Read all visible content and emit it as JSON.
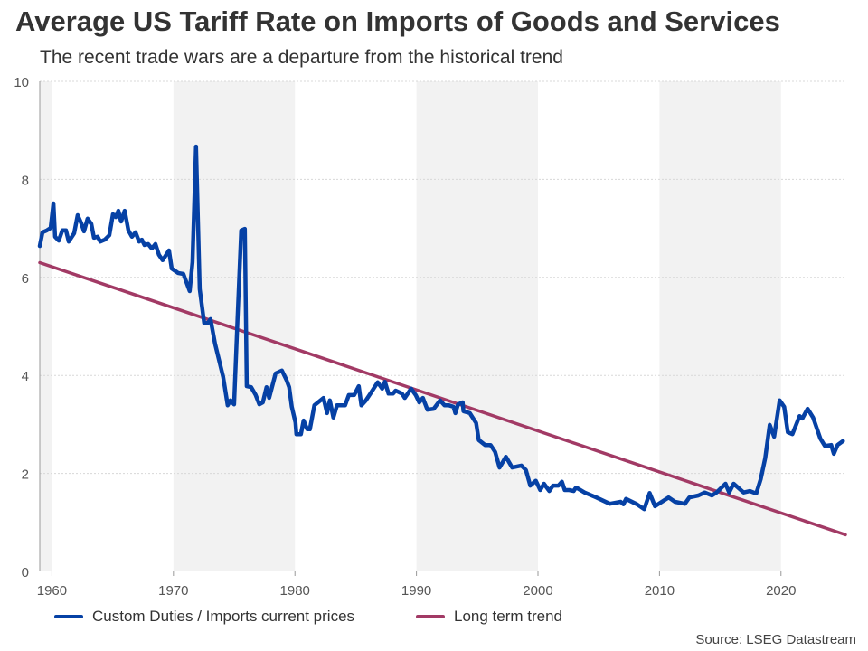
{
  "title": "Average US Tariff Rate on Imports of Goods and Services",
  "subtitle": "The recent trade wars are a departure from the historical trend",
  "source": "Source: LSEG Datastream",
  "chart_data": {
    "type": "line",
    "title": "Average US Tariff Rate on Imports of Goods and Services",
    "subtitle": "The recent trade wars are a departure from the historical trend",
    "xlim": [
      1959,
      2025.3
    ],
    "ylim": [
      0,
      10
    ],
    "x_ticks": [
      1960,
      1970,
      1980,
      1990,
      2000,
      2010,
      2020
    ],
    "y_ticks": [
      0,
      2,
      4,
      6,
      8,
      10
    ],
    "grid": "horizontal dotted",
    "shaded_periods": [
      [
        1959,
        1960
      ],
      [
        1970,
        1980
      ],
      [
        1990,
        2000
      ],
      [
        2010,
        2020
      ]
    ],
    "legend_position": "bottom-left",
    "series": [
      {
        "name": "Custom Duties / Imports current prices",
        "color": "#0641a5",
        "points": [
          [
            1959.0,
            6.64
          ],
          [
            1959.22,
            6.92
          ],
          [
            1959.59,
            6.96
          ],
          [
            1959.89,
            7.01
          ],
          [
            1960.12,
            7.51
          ],
          [
            1960.26,
            6.83
          ],
          [
            1960.56,
            6.75
          ],
          [
            1960.86,
            6.96
          ],
          [
            1961.16,
            6.96
          ],
          [
            1961.38,
            6.73
          ],
          [
            1961.83,
            6.9
          ],
          [
            1962.12,
            7.27
          ],
          [
            1962.42,
            7.1
          ],
          [
            1962.64,
            6.94
          ],
          [
            1962.94,
            7.2
          ],
          [
            1963.24,
            7.09
          ],
          [
            1963.46,
            6.81
          ],
          [
            1963.76,
            6.83
          ],
          [
            1963.98,
            6.73
          ],
          [
            1964.35,
            6.77
          ],
          [
            1964.72,
            6.86
          ],
          [
            1965.02,
            7.29
          ],
          [
            1965.25,
            7.23
          ],
          [
            1965.47,
            7.36
          ],
          [
            1965.69,
            7.14
          ],
          [
            1965.99,
            7.36
          ],
          [
            1966.29,
            6.96
          ],
          [
            1966.58,
            6.83
          ],
          [
            1966.88,
            6.92
          ],
          [
            1967.18,
            6.73
          ],
          [
            1967.4,
            6.77
          ],
          [
            1967.62,
            6.66
          ],
          [
            1967.92,
            6.68
          ],
          [
            1968.22,
            6.59
          ],
          [
            1968.52,
            6.68
          ],
          [
            1968.81,
            6.46
          ],
          [
            1969.11,
            6.35
          ],
          [
            1969.63,
            6.55
          ],
          [
            1969.86,
            6.18
          ],
          [
            1970.38,
            6.09
          ],
          [
            1970.82,
            6.07
          ],
          [
            1971.34,
            5.72
          ],
          [
            1971.57,
            6.31
          ],
          [
            1971.86,
            8.67
          ],
          [
            1972.16,
            5.76
          ],
          [
            1972.53,
            5.07
          ],
          [
            1972.83,
            5.07
          ],
          [
            1973.05,
            5.15
          ],
          [
            1973.42,
            4.65
          ],
          [
            1974.09,
            3.97
          ],
          [
            1974.46,
            3.39
          ],
          [
            1974.69,
            3.49
          ],
          [
            1974.99,
            3.41
          ],
          [
            1975.28,
            5.2
          ],
          [
            1975.58,
            6.96
          ],
          [
            1975.88,
            6.99
          ],
          [
            1976.03,
            3.78
          ],
          [
            1976.4,
            3.76
          ],
          [
            1976.77,
            3.6
          ],
          [
            1977.07,
            3.41
          ],
          [
            1977.36,
            3.45
          ],
          [
            1977.66,
            3.76
          ],
          [
            1977.88,
            3.54
          ],
          [
            1978.41,
            4.04
          ],
          [
            1978.93,
            4.1
          ],
          [
            1979.3,
            3.91
          ],
          [
            1979.52,
            3.76
          ],
          [
            1979.74,
            3.36
          ],
          [
            1980.04,
            3.04
          ],
          [
            1980.12,
            2.8
          ],
          [
            1980.49,
            2.8
          ],
          [
            1980.71,
            3.08
          ],
          [
            1981.01,
            2.9
          ],
          [
            1981.23,
            2.9
          ],
          [
            1981.6,
            3.39
          ],
          [
            1982.35,
            3.54
          ],
          [
            1982.64,
            3.23
          ],
          [
            1982.87,
            3.49
          ],
          [
            1983.16,
            3.14
          ],
          [
            1983.46,
            3.39
          ],
          [
            1984.13,
            3.39
          ],
          [
            1984.43,
            3.6
          ],
          [
            1984.87,
            3.6
          ],
          [
            1985.25,
            3.78
          ],
          [
            1985.47,
            3.39
          ],
          [
            1985.84,
            3.49
          ],
          [
            1986.21,
            3.63
          ],
          [
            1986.81,
            3.86
          ],
          [
            1987.18,
            3.73
          ],
          [
            1987.4,
            3.87
          ],
          [
            1987.7,
            3.63
          ],
          [
            1988.07,
            3.63
          ],
          [
            1988.29,
            3.69
          ],
          [
            1988.81,
            3.63
          ],
          [
            1989.04,
            3.54
          ],
          [
            1989.56,
            3.73
          ],
          [
            1989.94,
            3.6
          ],
          [
            1990.23,
            3.45
          ],
          [
            1990.53,
            3.54
          ],
          [
            1990.9,
            3.3
          ],
          [
            1991.42,
            3.32
          ],
          [
            1991.94,
            3.49
          ],
          [
            1992.31,
            3.39
          ],
          [
            1992.68,
            3.39
          ],
          [
            1993.05,
            3.36
          ],
          [
            1993.2,
            3.23
          ],
          [
            1993.42,
            3.41
          ],
          [
            1993.8,
            3.45
          ],
          [
            1993.87,
            3.27
          ],
          [
            1994.39,
            3.23
          ],
          [
            1994.91,
            3.03
          ],
          [
            1995.13,
            2.68
          ],
          [
            1995.65,
            2.58
          ],
          [
            1996.1,
            2.58
          ],
          [
            1996.47,
            2.44
          ],
          [
            1996.84,
            2.12
          ],
          [
            1997.36,
            2.34
          ],
          [
            1997.88,
            2.12
          ],
          [
            1998.63,
            2.16
          ],
          [
            1999.0,
            2.07
          ],
          [
            1999.37,
            1.75
          ],
          [
            1999.82,
            1.85
          ],
          [
            2000.19,
            1.66
          ],
          [
            2000.49,
            1.79
          ],
          [
            2000.93,
            1.64
          ],
          [
            2001.23,
            1.75
          ],
          [
            2001.68,
            1.75
          ],
          [
            2001.97,
            1.83
          ],
          [
            2002.2,
            1.66
          ],
          [
            2002.35,
            1.66
          ],
          [
            2002.57,
            1.66
          ],
          [
            2002.94,
            1.64
          ],
          [
            2003.09,
            1.7
          ],
          [
            2003.24,
            1.7
          ],
          [
            2003.83,
            1.61
          ],
          [
            2004.8,
            1.51
          ],
          [
            2005.91,
            1.38
          ],
          [
            2006.81,
            1.42
          ],
          [
            2007.03,
            1.37
          ],
          [
            2007.25,
            1.48
          ],
          [
            2008.14,
            1.37
          ],
          [
            2008.74,
            1.27
          ],
          [
            2009.19,
            1.6
          ],
          [
            2009.63,
            1.33
          ],
          [
            2010.75,
            1.51
          ],
          [
            2011.27,
            1.42
          ],
          [
            2012.09,
            1.38
          ],
          [
            2012.46,
            1.51
          ],
          [
            2013.2,
            1.55
          ],
          [
            2013.72,
            1.61
          ],
          [
            2014.32,
            1.55
          ],
          [
            2014.69,
            1.61
          ],
          [
            2015.43,
            1.79
          ],
          [
            2015.73,
            1.61
          ],
          [
            2016.1,
            1.79
          ],
          [
            2016.92,
            1.61
          ],
          [
            2017.44,
            1.64
          ],
          [
            2017.96,
            1.59
          ],
          [
            2018.33,
            1.88
          ],
          [
            2018.7,
            2.31
          ],
          [
            2019.07,
            2.99
          ],
          [
            2019.44,
            2.75
          ],
          [
            2019.89,
            3.49
          ],
          [
            2020.26,
            3.36
          ],
          [
            2020.56,
            2.84
          ],
          [
            2020.94,
            2.8
          ],
          [
            2021.53,
            3.17
          ],
          [
            2021.75,
            3.12
          ],
          [
            2022.19,
            3.32
          ],
          [
            2022.64,
            3.14
          ],
          [
            2023.24,
            2.71
          ],
          [
            2023.61,
            2.56
          ],
          [
            2024.13,
            2.58
          ],
          [
            2024.35,
            2.4
          ],
          [
            2024.65,
            2.58
          ],
          [
            2025.1,
            2.66
          ]
        ]
      },
      {
        "name": "Long term trend",
        "color": "#a23a65",
        "points": [
          [
            1959.0,
            6.3
          ],
          [
            2025.3,
            0.75
          ]
        ]
      }
    ]
  }
}
